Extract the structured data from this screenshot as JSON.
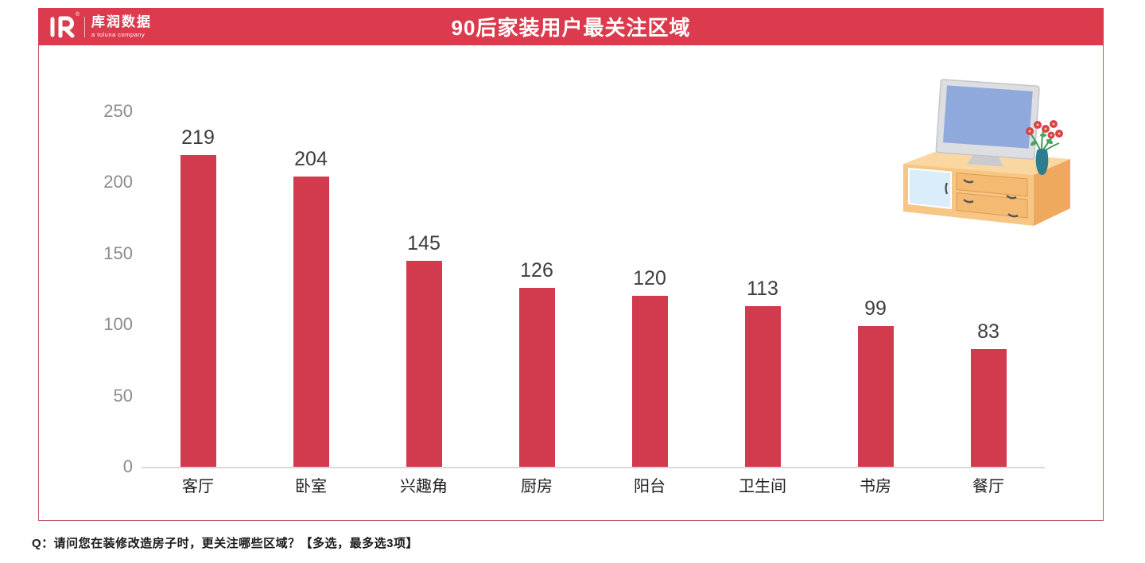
{
  "logo": {
    "mark": "R",
    "registered": "®",
    "name": "库润数据",
    "tagline": "a toluna company"
  },
  "header": {
    "title": "90后家装用户最关注区域"
  },
  "chart_data": {
    "type": "bar",
    "title": "90后家装用户最关注区域",
    "categories": [
      "客厅",
      "卧室",
      "兴趣角",
      "厨房",
      "阳台",
      "卫生间",
      "书房",
      "餐厅"
    ],
    "values": [
      219,
      204,
      145,
      126,
      120,
      113,
      99,
      83
    ],
    "xlabel": "",
    "ylabel": "",
    "ylim": [
      0,
      250
    ],
    "yticks": [
      0,
      50,
      100,
      150,
      200,
      250
    ],
    "grid": false,
    "legend": "none",
    "bar_color": "#d23a4e"
  },
  "colors": {
    "header_bg": "#db3b4d",
    "bar": "#d23a4e",
    "frame_border": "#c25562",
    "axis_line": "#d9d9d9",
    "tick_label": "#8c8c8c",
    "value_label": "#3d3d3d",
    "category_label": "#1f1f1f"
  },
  "footer": {
    "question": "Q：请问您在装修改造房子时，更关注哪些区域？【多选，最多选3项】"
  }
}
